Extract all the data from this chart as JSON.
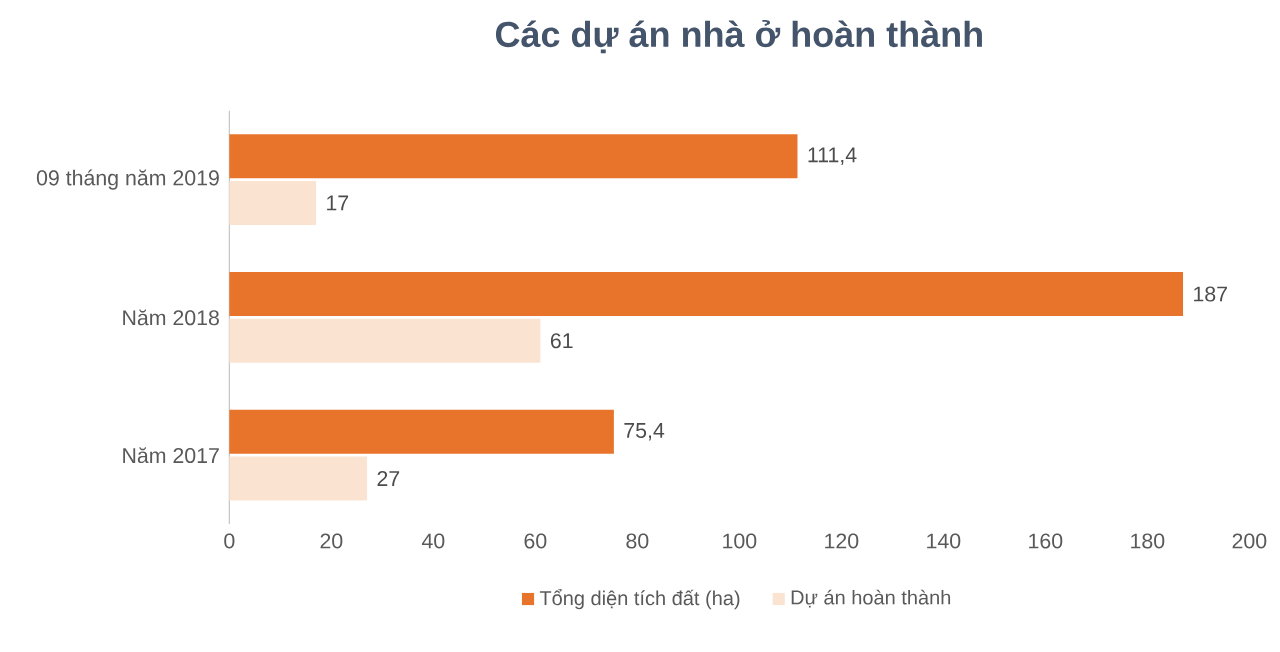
{
  "chart_data": {
    "type": "bar",
    "orientation": "horizontal",
    "title": "Các dự án nhà ở hoàn thành",
    "categories": [
      "09 tháng năm 2019",
      "Năm 2018",
      "Năm 2017"
    ],
    "series": [
      {
        "name": "Tổng diện tích đất (ha)",
        "color": "#e8732b",
        "values": [
          111.4,
          187,
          75.4
        ],
        "value_labels": [
          "111,4",
          "187",
          "75,4"
        ]
      },
      {
        "name": "Dự án hoàn thành",
        "color": "#fbe3d2",
        "values": [
          17,
          61,
          27
        ],
        "value_labels": [
          "17",
          "61",
          "27"
        ]
      }
    ],
    "xlim": [
      0,
      200
    ],
    "xticks": [
      0,
      20,
      40,
      60,
      80,
      100,
      120,
      140,
      160,
      180,
      200
    ],
    "legend": "bottom"
  }
}
